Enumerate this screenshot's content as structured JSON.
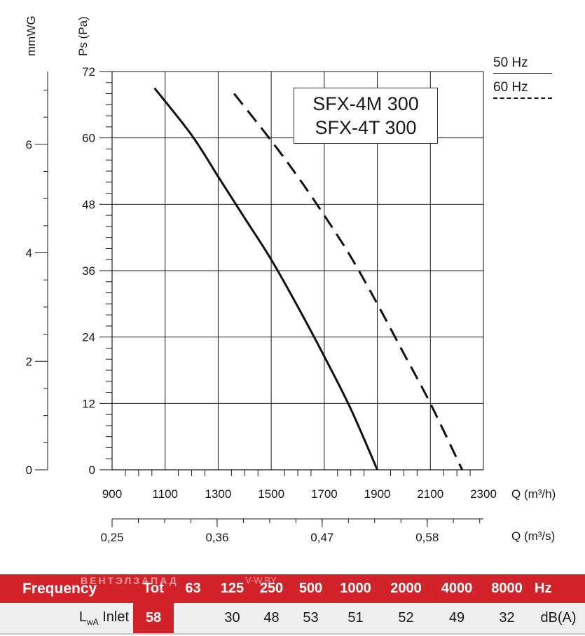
{
  "chart_data": {
    "type": "line",
    "title": [
      "SFX-4M 300",
      "SFX-4T 300"
    ],
    "xlabel": "Q (m³/h)",
    "ylabel": "Ps (Pa)",
    "secondary_y_label": "mmWG",
    "secondary_x_label": "Q (m³/s)",
    "xlim": [
      900,
      2300
    ],
    "ylim": [
      0,
      72
    ],
    "x_ticks": [
      "900",
      "1100",
      "1300",
      "1500",
      "1700",
      "1900",
      "2100",
      "2300"
    ],
    "y_ticks": [
      "0",
      "12",
      "24",
      "36",
      "48",
      "60",
      "72"
    ],
    "mmwg_ticks": [
      "0",
      "2",
      "4",
      "6"
    ],
    "m3s_ticks": [
      "0,25",
      "0,36",
      "0,47",
      "0,58"
    ],
    "series": [
      {
        "name": "50 Hz",
        "style": "solid",
        "x": [
          1060,
          1200,
          1300,
          1400,
          1500,
          1600,
          1700,
          1800,
          1900
        ],
        "y": [
          69,
          60.5,
          53,
          45.5,
          38,
          29.5,
          20.5,
          11,
          0
        ]
      },
      {
        "name": "60 Hz",
        "style": "dashed",
        "x": [
          1360,
          1500,
          1600,
          1700,
          1800,
          1900,
          2000,
          2100,
          2220
        ],
        "y": [
          68,
          59.5,
          53,
          46,
          38.5,
          30,
          21,
          12,
          0
        ]
      }
    ]
  },
  "legend": {
    "hz50": "50 Hz",
    "hz60": "60 Hz"
  },
  "spectrum": {
    "header_label": "Frequency",
    "tot_label": "Tot",
    "bands": [
      "63",
      "125",
      "250",
      "500",
      "1000",
      "2000",
      "4000",
      "8000"
    ],
    "unit_label": "Hz",
    "row_label_main": "L",
    "row_label_sub": "wA",
    "row_label_rest": " Inlet",
    "tot_value": "58",
    "values": [
      "",
      "30",
      "48",
      "53",
      "51",
      "52",
      "49",
      "32"
    ],
    "value_unit": "dB(A)"
  },
  "watermark": {
    "left": "ВЕНТЭЛЗАПАД",
    "right": "V-W.BY"
  }
}
